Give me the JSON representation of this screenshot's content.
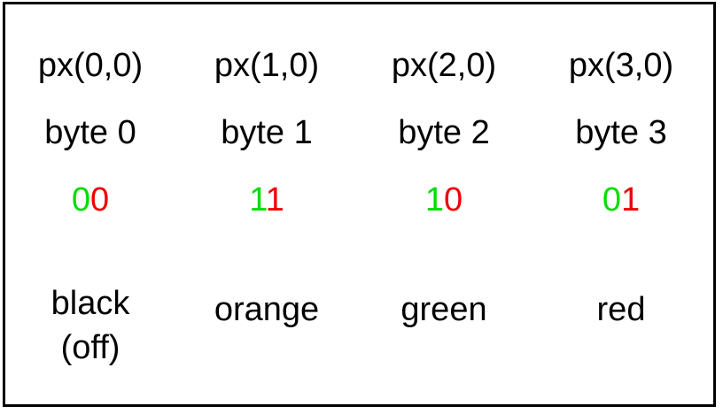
{
  "columns": [
    {
      "pixel": "px(0,0)",
      "byte": "byte 0",
      "bit_high": "0",
      "bit_low": "0",
      "color_name": "black",
      "color_note": "(off)"
    },
    {
      "pixel": "px(1,0)",
      "byte": "byte 1",
      "bit_high": "1",
      "bit_low": "1",
      "color_name": "orange",
      "color_note": ""
    },
    {
      "pixel": "px(2,0)",
      "byte": "byte 2",
      "bit_high": "1",
      "bit_low": "0",
      "color_name": "green",
      "color_note": ""
    },
    {
      "pixel": "px(3,0)",
      "byte": "byte 3",
      "bit_high": "0",
      "bit_low": "1",
      "color_name": "red",
      "color_note": ""
    }
  ],
  "colors": {
    "high_bit": "#00dd00",
    "low_bit": "#ee0000",
    "text": "#000000",
    "border": "#000000",
    "background": "#ffffff"
  }
}
